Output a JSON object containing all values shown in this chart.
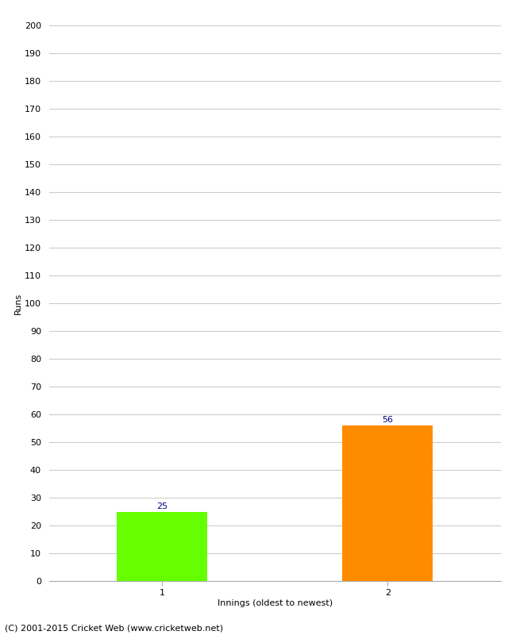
{
  "categories": [
    "1",
    "2"
  ],
  "values": [
    25,
    56
  ],
  "bar_colors": [
    "#66ff00",
    "#ff8c00"
  ],
  "xlabel": "Innings (oldest to newest)",
  "ylabel": "Runs",
  "ylim": [
    0,
    200
  ],
  "yticks": [
    0,
    10,
    20,
    30,
    40,
    50,
    60,
    70,
    80,
    90,
    100,
    110,
    120,
    130,
    140,
    150,
    160,
    170,
    180,
    190,
    200
  ],
  "value_label_color": "#000080",
  "value_label_fontsize": 8,
  "axis_label_fontsize": 8,
  "tick_fontsize": 8,
  "footer_text": "(C) 2001-2015 Cricket Web (www.cricketweb.net)",
  "footer_fontsize": 8,
  "background_color": "#ffffff",
  "grid_color": "#cccccc",
  "bar_width": 0.6,
  "bar_positions": [
    0.75,
    2.25
  ],
  "xlim": [
    0,
    3.0
  ],
  "xtick_positions": [
    0.75,
    2.25
  ]
}
